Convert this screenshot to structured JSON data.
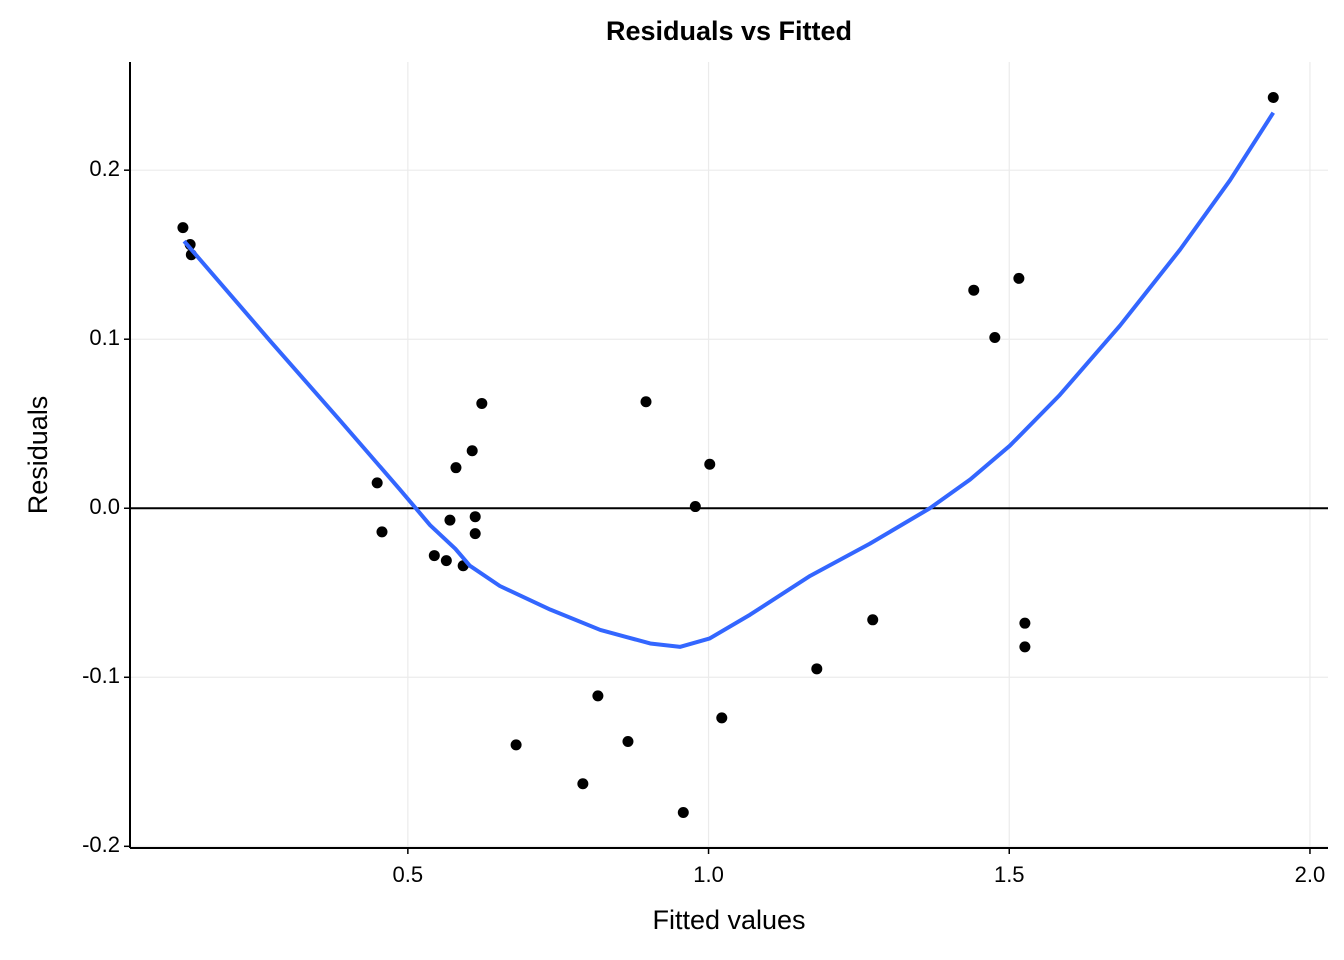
{
  "chart_data": {
    "type": "scatter",
    "title": "Residuals vs Fitted",
    "x_label": "Fitted values",
    "y_label": "Residuals",
    "xlim": [
      0.038,
      2.03
    ],
    "ylim": [
      -0.201,
      0.264
    ],
    "xticks": [
      0.5,
      {
        "value": 1.0,
        "label": "1.0"
      },
      1.5,
      {
        "value": 2.0,
        "label": "2.0"
      }
    ],
    "yticks": [
      -0.2,
      -0.1,
      {
        "value": 0,
        "label": "0.0"
      },
      0.1,
      0.2
    ],
    "grid": true,
    "hline": 0,
    "points": {
      "color": "#000000",
      "x": [
        0.126,
        0.138,
        0.14,
        0.449,
        0.457,
        0.544,
        0.564,
        0.57,
        0.58,
        0.592,
        0.607,
        0.612,
        0.612,
        0.623,
        0.68,
        0.791,
        0.816,
        0.866,
        0.896,
        0.958,
        0.978,
        1.002,
        1.022,
        1.18,
        1.273,
        1.441,
        1.476,
        1.516,
        1.526,
        1.526,
        1.939
      ],
      "y": [
        0.166,
        0.156,
        0.15,
        0.015,
        -0.014,
        -0.028,
        -0.031,
        -0.007,
        0.024,
        -0.034,
        0.034,
        -0.005,
        -0.015,
        0.062,
        -0.14,
        -0.163,
        -0.111,
        -0.138,
        0.063,
        -0.18,
        0.001,
        0.026,
        -0.124,
        -0.095,
        -0.066,
        0.129,
        0.101,
        0.136,
        -0.068,
        -0.082,
        0.243
      ]
    },
    "smooth": {
      "color": "#3366ff",
      "x": [
        0.128,
        0.271,
        0.387,
        0.487,
        0.537,
        0.579,
        0.603,
        0.653,
        0.737,
        0.82,
        0.903,
        0.953,
        1.002,
        1.069,
        1.169,
        1.268,
        1.368,
        1.435,
        1.501,
        1.584,
        1.684,
        1.784,
        1.867,
        1.939
      ],
      "y": [
        0.158,
        0.099,
        0.052,
        0.011,
        -0.01,
        -0.024,
        -0.034,
        -0.046,
        -0.06,
        -0.072,
        -0.08,
        -0.082,
        -0.077,
        -0.063,
        -0.04,
        -0.021,
        0.0,
        0.017,
        0.037,
        0.067,
        0.108,
        0.153,
        0.194,
        0.234
      ]
    }
  }
}
